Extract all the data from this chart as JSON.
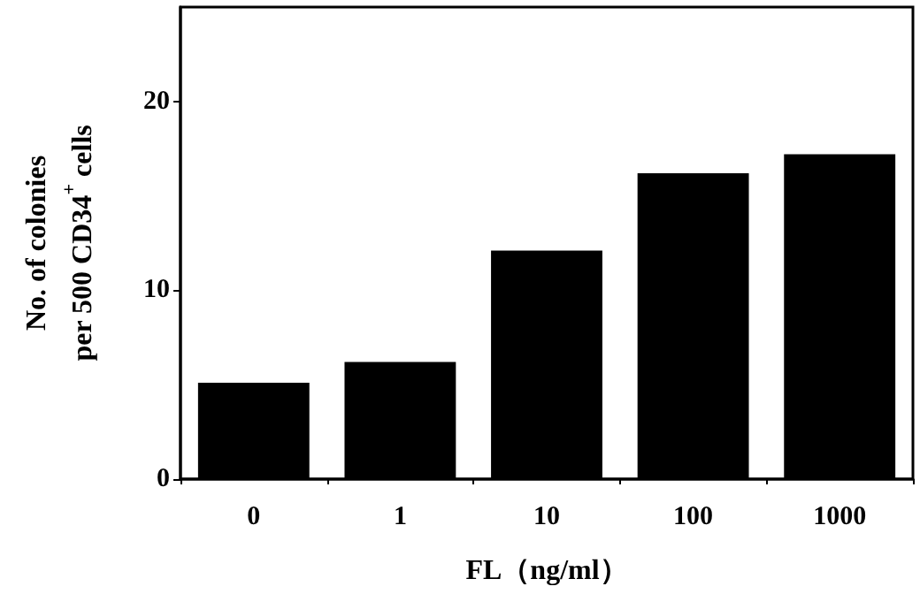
{
  "chart_data": {
    "type": "bar",
    "xlabel": "FL（ng/ml）",
    "ylabel": "No. of colonies\nper 500 CD34$^{+}$ cells",
    "categories": [
      "0",
      "1",
      "10",
      "100",
      "1000"
    ],
    "values": [
      5.1,
      6.2,
      12.1,
      16.2,
      17.2
    ],
    "color": "#000000",
    "ylim": [
      0,
      25
    ],
    "yticks": [
      0,
      10,
      20
    ],
    "grid": false
  }
}
